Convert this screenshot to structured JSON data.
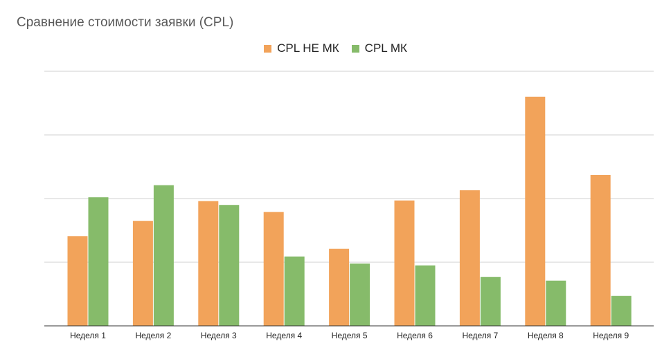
{
  "chart_data": {
    "type": "bar",
    "title": "Сравнение стоимости заявки (CPL)",
    "xlabel": "",
    "ylabel": "",
    "ylim": [
      0,
      4
    ],
    "grid": true,
    "legend_position": "top-center",
    "categories": [
      "Неделя 1",
      "Неделя 2",
      "Неделя 3",
      "Неделя 4",
      "Неделя 5",
      "Неделя 6",
      "Неделя 7",
      "Неделя 8",
      "Неделя 9"
    ],
    "series": [
      {
        "name": "CPL НЕ МК",
        "color": "#F2A35A",
        "values": [
          1.41,
          1.65,
          1.96,
          1.79,
          1.21,
          1.97,
          2.13,
          3.6,
          2.37
        ]
      },
      {
        "name": "CPL МК",
        "color": "#86BB6A",
        "values": [
          2.02,
          2.21,
          1.9,
          1.09,
          0.98,
          0.95,
          0.77,
          0.71,
          0.47
        ]
      }
    ]
  }
}
